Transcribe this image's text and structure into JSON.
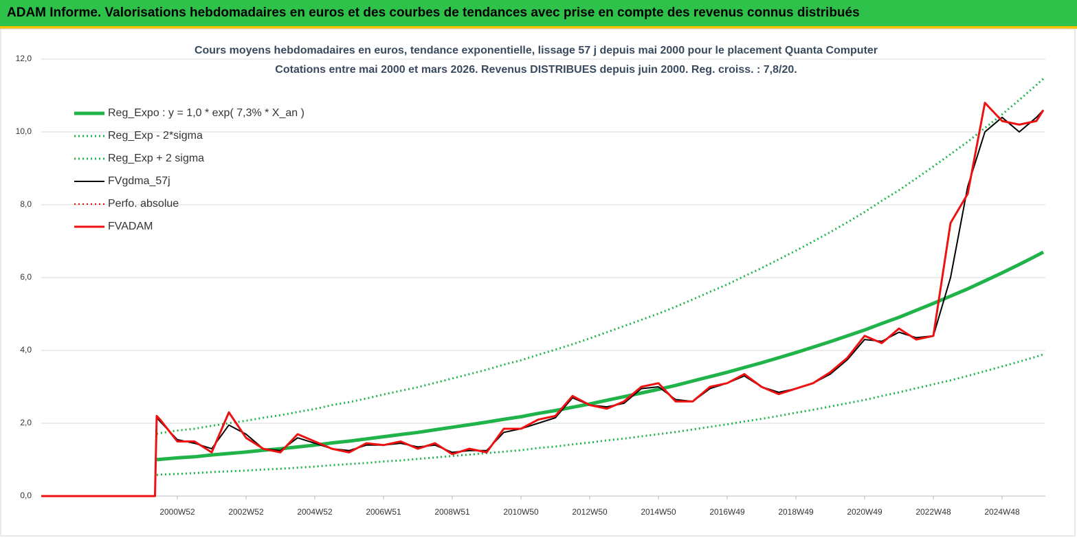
{
  "header": {
    "title": "ADAM Informe. Valorisations hebdomadaires en euros et des courbes de tendances avec prise en compte des revenus connus distribués"
  },
  "chart_data": {
    "type": "line",
    "title": "Cours moyens hebdomadaires en euros, tendance exponentielle, lissage 57 j depuis mai 2000 pour le placement Quanta Computer",
    "subtitle": "Cotations entre mai 2000 et mars 2026. Revenus DISTRIBUES depuis juin 2000. Reg. croiss. : 7,8/20.",
    "x": [
      1997.04,
      2000.35,
      2000.4,
      2000.5,
      2001.0,
      2001.5,
      2002.0,
      2002.5,
      2003.0,
      2003.5,
      2004.0,
      2004.5,
      2005.0,
      2005.5,
      2006.0,
      2006.5,
      2007.0,
      2007.5,
      2008.0,
      2008.5,
      2009.0,
      2009.5,
      2010.0,
      2010.5,
      2011.0,
      2011.5,
      2012.0,
      2012.5,
      2013.0,
      2013.5,
      2014.0,
      2014.5,
      2015.0,
      2015.5,
      2016.0,
      2016.5,
      2017.0,
      2017.5,
      2018.0,
      2018.5,
      2019.0,
      2019.5,
      2020.0,
      2020.5,
      2021.0,
      2021.5,
      2022.0,
      2022.5,
      2023.0,
      2023.5,
      2024.0,
      2024.5,
      2025.0,
      2025.5,
      2026.0,
      2026.2
    ],
    "xlim": [
      1997.04,
      2026.26
    ],
    "xticks": [
      {
        "value": 2001.0,
        "label": "2000W52"
      },
      {
        "value": 2003.0,
        "label": "2002W52"
      },
      {
        "value": 2005.0,
        "label": "2004W52"
      },
      {
        "value": 2007.0,
        "label": "2006W51"
      },
      {
        "value": 2009.0,
        "label": "2008W51"
      },
      {
        "value": 2011.0,
        "label": "2010W50"
      },
      {
        "value": 2013.0,
        "label": "2012W50"
      },
      {
        "value": 2015.0,
        "label": "2014W50"
      },
      {
        "value": 2017.0,
        "label": "2016W49"
      },
      {
        "value": 2019.0,
        "label": "2018W49"
      },
      {
        "value": 2021.0,
        "label": "2020W49"
      },
      {
        "value": 2023.0,
        "label": "2022W48"
      },
      {
        "value": 2025.0,
        "label": "2024W48"
      }
    ],
    "ylim": [
      0,
      12
    ],
    "yticks": [
      {
        "value": 0,
        "label": "0,0"
      },
      {
        "value": 2,
        "label": "2,0"
      },
      {
        "value": 4,
        "label": "4,0"
      },
      {
        "value": 6,
        "label": "6,0"
      },
      {
        "value": 8,
        "label": "8,0"
      },
      {
        "value": 10,
        "label": "10,0"
      },
      {
        "value": 12,
        "label": "12,0"
      }
    ],
    "grid": true,
    "series": [
      {
        "name": "Reg_Expo : y = 1,0 * exp( 7,3% *  X_an )",
        "color": "#1fb34a",
        "dash": "solid",
        "width": 5,
        "values": [
          null,
          null,
          1.0,
          1.01,
          1.05,
          1.08,
          1.13,
          1.17,
          1.21,
          1.26,
          1.3,
          1.35,
          1.4,
          1.46,
          1.51,
          1.57,
          1.63,
          1.69,
          1.75,
          1.82,
          1.89,
          1.96,
          2.03,
          2.11,
          2.18,
          2.27,
          2.35,
          2.44,
          2.53,
          2.63,
          2.73,
          2.83,
          2.93,
          3.04,
          3.16,
          3.28,
          3.4,
          3.53,
          3.66,
          3.8,
          3.94,
          4.09,
          4.24,
          4.4,
          4.56,
          4.74,
          4.91,
          5.1,
          5.29,
          5.49,
          5.69,
          5.91,
          6.13,
          6.36,
          6.6,
          6.7
        ]
      },
      {
        "name": "Reg_Exp - 2*sigma",
        "color": "#1fb34a",
        "dash": "dotted",
        "width": 3,
        "values": [
          null,
          null,
          0.58,
          0.59,
          0.61,
          0.63,
          0.66,
          0.68,
          0.7,
          0.73,
          0.75,
          0.78,
          0.81,
          0.85,
          0.88,
          0.91,
          0.95,
          0.98,
          1.02,
          1.06,
          1.1,
          1.14,
          1.18,
          1.22,
          1.26,
          1.32,
          1.36,
          1.42,
          1.47,
          1.53,
          1.58,
          1.64,
          1.7,
          1.76,
          1.83,
          1.9,
          1.97,
          2.05,
          2.12,
          2.2,
          2.29,
          2.37,
          2.46,
          2.55,
          2.64,
          2.75,
          2.85,
          2.96,
          3.07,
          3.18,
          3.3,
          3.43,
          3.56,
          3.69,
          3.83,
          3.89
        ]
      },
      {
        "name": "Reg_Exp + 2 sigma",
        "color": "#1fb34a",
        "dash": "dotted",
        "width": 3,
        "values": [
          null,
          null,
          1.71,
          1.73,
          1.8,
          1.85,
          1.93,
          2.0,
          2.07,
          2.15,
          2.22,
          2.31,
          2.39,
          2.5,
          2.58,
          2.68,
          2.79,
          2.89,
          2.99,
          3.11,
          3.23,
          3.35,
          3.47,
          3.61,
          3.73,
          3.88,
          4.02,
          4.17,
          4.33,
          4.5,
          4.67,
          4.84,
          5.01,
          5.2,
          5.4,
          5.61,
          5.81,
          6.04,
          6.26,
          6.5,
          6.74,
          6.99,
          7.25,
          7.52,
          7.8,
          8.11,
          8.4,
          8.72,
          9.05,
          9.39,
          9.73,
          10.11,
          10.48,
          10.88,
          11.29,
          11.46
        ]
      },
      {
        "name": "FVgdma_57j",
        "color": "#000000",
        "dash": "solid",
        "width": 2,
        "values": [
          null,
          null,
          2.15,
          2.05,
          1.55,
          1.45,
          1.3,
          1.95,
          1.7,
          1.3,
          1.25,
          1.6,
          1.45,
          1.3,
          1.25,
          1.4,
          1.4,
          1.45,
          1.35,
          1.4,
          1.2,
          1.25,
          1.25,
          1.75,
          1.85,
          2.0,
          2.15,
          2.7,
          2.5,
          2.45,
          2.55,
          2.95,
          3.0,
          2.65,
          2.6,
          2.95,
          3.1,
          3.3,
          3.0,
          2.85,
          2.95,
          3.1,
          3.35,
          3.75,
          4.3,
          4.25,
          4.5,
          4.35,
          4.4,
          6.0,
          8.5,
          10.0,
          10.4,
          10.0,
          10.4,
          10.6
        ]
      },
      {
        "name": "Perfo. absolue",
        "color": "#e00000",
        "dash": "dotted",
        "width": 2,
        "values": [
          null,
          null,
          null,
          null,
          null,
          null,
          null,
          null,
          null,
          null,
          null,
          null,
          null,
          null,
          null,
          null,
          null,
          null,
          null,
          null,
          null,
          null,
          null,
          null,
          null,
          null,
          null,
          null,
          null,
          null,
          null,
          null,
          null,
          null,
          null,
          null,
          null,
          null,
          null,
          null,
          null,
          null,
          null,
          null,
          null,
          null,
          null,
          null,
          null,
          null,
          null,
          null,
          null,
          null,
          null,
          null
        ]
      },
      {
        "name": "FVADAM",
        "color": "#ee1111",
        "dash": "solid",
        "width": 3,
        "values": [
          0,
          0,
          2.2,
          2.1,
          1.5,
          1.5,
          1.2,
          2.3,
          1.6,
          1.3,
          1.2,
          1.7,
          1.5,
          1.3,
          1.2,
          1.45,
          1.4,
          1.5,
          1.3,
          1.45,
          1.15,
          1.3,
          1.2,
          1.85,
          1.85,
          2.1,
          2.2,
          2.75,
          2.5,
          2.4,
          2.6,
          3.0,
          3.1,
          2.6,
          2.6,
          3.0,
          3.1,
          3.35,
          3.0,
          2.8,
          2.95,
          3.1,
          3.4,
          3.8,
          4.4,
          4.2,
          4.6,
          4.3,
          4.4,
          7.5,
          8.3,
          10.8,
          10.3,
          10.2,
          10.3,
          10.6
        ]
      }
    ]
  }
}
